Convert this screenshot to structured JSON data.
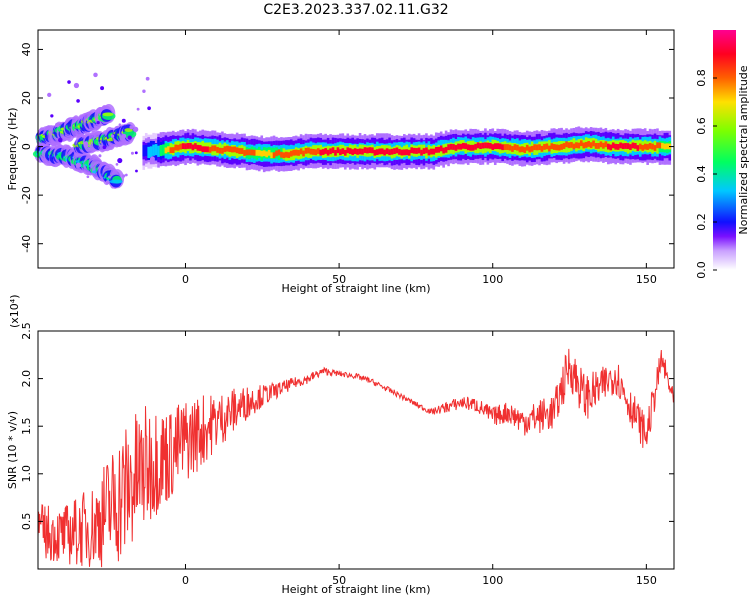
{
  "title": "C2E3.2023.337.02.11.G32",
  "colorbar": {
    "label": "Normalized spectral amplitude",
    "ticks": [
      "0.0",
      "0.2",
      "0.4",
      "0.6",
      "0.8"
    ],
    "tick_values": [
      0.0,
      0.2,
      0.4,
      0.6,
      0.8
    ],
    "range": [
      0,
      1
    ]
  },
  "chart_data": [
    {
      "type": "heatmap",
      "xlabel": "Height of straight line (km)",
      "ylabel": "Frequency (Hz)",
      "xlim": [
        -48,
        159
      ],
      "ylim": [
        -50,
        48
      ],
      "xticks": [
        0,
        50,
        100,
        150
      ],
      "yticks": [
        -40,
        -20,
        0,
        20,
        40
      ],
      "ridge": [
        {
          "x": -14,
          "y": -2,
          "amp": 0.5
        },
        {
          "x": -5,
          "y": -1,
          "amp": 0.9
        },
        {
          "x": 0,
          "y": 0,
          "amp": 1.0
        },
        {
          "x": 10,
          "y": -1,
          "amp": 0.95
        },
        {
          "x": 18,
          "y": -2,
          "amp": 0.9
        },
        {
          "x": 25,
          "y": -3,
          "amp": 0.85
        },
        {
          "x": 33,
          "y": -3,
          "amp": 0.9
        },
        {
          "x": 40,
          "y": -2,
          "amp": 0.95
        },
        {
          "x": 50,
          "y": -2,
          "amp": 1.0
        },
        {
          "x": 60,
          "y": -2,
          "amp": 1.0
        },
        {
          "x": 70,
          "y": -2,
          "amp": 1.0
        },
        {
          "x": 80,
          "y": -2,
          "amp": 1.0
        },
        {
          "x": 88,
          "y": 0,
          "amp": 1.0
        },
        {
          "x": 100,
          "y": 0,
          "amp": 1.0
        },
        {
          "x": 110,
          "y": -1,
          "amp": 0.9
        },
        {
          "x": 120,
          "y": 0,
          "amp": 0.95
        },
        {
          "x": 130,
          "y": 1,
          "amp": 0.9
        },
        {
          "x": 140,
          "y": 0,
          "amp": 1.0
        },
        {
          "x": 150,
          "y": 0,
          "amp": 0.95
        },
        {
          "x": 158,
          "y": 0,
          "amp": 0.8
        }
      ],
      "early_branches": [
        {
          "x": [
            -47,
            -40,
            -33,
            -25
          ],
          "y": [
            3,
            6,
            9,
            13
          ],
          "amp": 0.7
        },
        {
          "x": [
            -47,
            -38,
            -30,
            -22
          ],
          "y": [
            -3,
            -4,
            -8,
            -14
          ],
          "amp": 0.5
        },
        {
          "x": [
            -35,
            -25,
            -18
          ],
          "y": [
            0,
            3,
            6
          ],
          "amp": 0.7
        }
      ]
    },
    {
      "type": "line",
      "xlabel": "Height of straight line (km)",
      "ylabel": "SNR (10 * v/v)",
      "y_multiplier": "(x10⁴)",
      "xlim": [
        -48,
        159
      ],
      "ylim": [
        0,
        2.5
      ],
      "xticks": [
        0,
        50,
        100,
        150
      ],
      "yticks": [
        0.5,
        1.0,
        1.5,
        2.0,
        2.5
      ],
      "ytick_labels": [
        "0.5",
        "1.0",
        "1.5",
        "2.0",
        "2.5"
      ],
      "color": "#f03030",
      "series": [
        {
          "x": [
            -48,
            -40,
            -30,
            -20,
            -15,
            -10,
            -5,
            0,
            5,
            10,
            15,
            20,
            25,
            30,
            35,
            40,
            45,
            50,
            55,
            60,
            65,
            70,
            75,
            80,
            85,
            90,
            95,
            100,
            105,
            110,
            115,
            120,
            125,
            130,
            135,
            140,
            145,
            150,
            155,
            159
          ],
          "y": [
            0.4,
            0.35,
            0.45,
            0.8,
            1.0,
            1.15,
            1.2,
            1.35,
            1.45,
            1.55,
            1.65,
            1.75,
            1.82,
            1.88,
            1.95,
            2.0,
            2.08,
            2.05,
            2.03,
            1.98,
            1.9,
            1.82,
            1.73,
            1.65,
            1.7,
            1.75,
            1.72,
            1.6,
            1.65,
            1.55,
            1.6,
            1.65,
            2.15,
            1.8,
            1.9,
            2.05,
            1.7,
            1.4,
            2.2,
            1.75
          ],
          "noise": [
            0.3,
            0.3,
            0.45,
            0.75,
            0.7,
            0.6,
            0.5,
            0.45,
            0.4,
            0.3,
            0.25,
            0.18,
            0.12,
            0.08,
            0.06,
            0.05,
            0.04,
            0.03,
            0.03,
            0.03,
            0.03,
            0.03,
            0.03,
            0.03,
            0.06,
            0.07,
            0.08,
            0.1,
            0.12,
            0.15,
            0.18,
            0.2,
            0.25,
            0.25,
            0.2,
            0.2,
            0.2,
            0.2,
            0.15,
            0.1
          ]
        }
      ]
    }
  ]
}
